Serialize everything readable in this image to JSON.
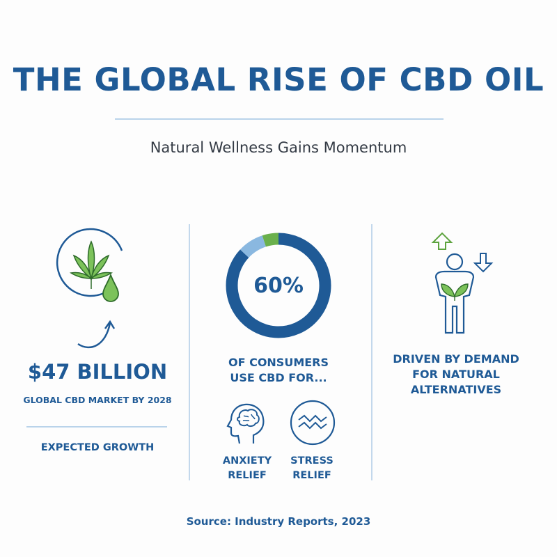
{
  "header": {
    "title": "THE GLOBAL RISE OF CBD OIL",
    "subtitle": "Natural Wellness Gains Momentum"
  },
  "market": {
    "value": "$47 BILLION",
    "caption": "GLOBAL CBD MARKET BY 2028",
    "note": "EXPECTED GROWTH",
    "icons": [
      "cannabis-leaf-icon",
      "oil-drop-icon",
      "curved-arrow-up-icon"
    ]
  },
  "consumers": {
    "percent_label": "60%",
    "line1": "OF CONSUMERS",
    "line2": "USE CBD FOR...",
    "donut_segments": [
      {
        "color": "#1f5a96",
        "fraction": 0.87
      },
      {
        "color": "#8ab8e0",
        "fraction": 0.08
      },
      {
        "color": "#6ab04c",
        "fraction": 0.05
      }
    ],
    "uses": [
      {
        "icon": "brain-head-icon",
        "line1": "ANXIETY",
        "line2": "RELIEF"
      },
      {
        "icon": "stress-waves-icon",
        "line1": "STRESS",
        "line2": "RELIEF"
      }
    ]
  },
  "demand": {
    "line1": "DRIVEN BY DEMAND",
    "line2": "FOR NATURAL",
    "line3": "ALTERNATIVES",
    "icon": "person-plant-arrows-icon"
  },
  "footer": {
    "source": "Source: Industry Reports, 2023"
  },
  "colors": {
    "primary": "#1f5a96",
    "light_blue": "#8ab8e0",
    "green": "#6ab04c"
  }
}
